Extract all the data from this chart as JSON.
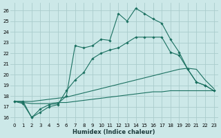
{
  "xlabel": "Humidex (Indice chaleur)",
  "xlim": [
    -0.5,
    23.5
  ],
  "ylim": [
    15.5,
    26.7
  ],
  "xticks": [
    0,
    1,
    2,
    3,
    4,
    5,
    6,
    7,
    8,
    9,
    10,
    11,
    12,
    13,
    14,
    15,
    16,
    17,
    18,
    19,
    20,
    21,
    22,
    23
  ],
  "yticks": [
    16,
    17,
    18,
    19,
    20,
    21,
    22,
    23,
    24,
    25,
    26
  ],
  "background_color": "#cce8e8",
  "grid_color": "#aacccc",
  "line_color": "#1a7060",
  "lines": [
    {
      "x": [
        0,
        1,
        2,
        3,
        4,
        5,
        6,
        7,
        8,
        9,
        10,
        11,
        12,
        13,
        14,
        15,
        16,
        17,
        18,
        19,
        20,
        21,
        22,
        23
      ],
      "y": [
        17.5,
        17.5,
        16.0,
        16.8,
        17.2,
        17.3,
        18.0,
        22.7,
        22.5,
        22.7,
        23.3,
        23.2,
        25.7,
        25.0,
        26.2,
        25.7,
        25.2,
        24.8,
        23.3,
        22.1,
        20.5,
        19.3,
        19.0,
        18.5
      ],
      "marker": true
    },
    {
      "x": [
        0,
        1,
        2,
        3,
        4,
        5,
        6,
        7,
        8,
        9,
        10,
        11,
        12,
        13,
        14,
        15,
        16,
        17,
        18,
        19,
        20,
        21,
        22,
        23
      ],
      "y": [
        17.5,
        17.3,
        16.0,
        16.5,
        17.0,
        17.2,
        18.5,
        19.5,
        20.2,
        21.5,
        22.0,
        22.3,
        22.5,
        23.0,
        23.5,
        23.5,
        23.5,
        23.5,
        22.1,
        21.8,
        20.5,
        19.3,
        19.0,
        18.5
      ],
      "marker": true
    },
    {
      "x": [
        0,
        1,
        2,
        3,
        4,
        5,
        6,
        7,
        8,
        9,
        10,
        11,
        12,
        13,
        14,
        15,
        16,
        17,
        18,
        19,
        20,
        21,
        22,
        23
      ],
      "y": [
        17.5,
        17.5,
        17.5,
        17.6,
        17.7,
        17.8,
        17.9,
        18.1,
        18.3,
        18.5,
        18.7,
        18.9,
        19.1,
        19.3,
        19.5,
        19.7,
        19.9,
        20.1,
        20.3,
        20.5,
        20.6,
        20.5,
        19.5,
        18.7
      ],
      "marker": false
    },
    {
      "x": [
        0,
        1,
        2,
        3,
        4,
        5,
        6,
        7,
        8,
        9,
        10,
        11,
        12,
        13,
        14,
        15,
        16,
        17,
        18,
        19,
        20,
        21,
        22,
        23
      ],
      "y": [
        17.5,
        17.4,
        17.3,
        17.3,
        17.3,
        17.4,
        17.4,
        17.5,
        17.6,
        17.7,
        17.8,
        17.9,
        18.0,
        18.1,
        18.2,
        18.3,
        18.4,
        18.4,
        18.5,
        18.5,
        18.5,
        18.5,
        18.5,
        18.5
      ],
      "marker": false
    }
  ]
}
